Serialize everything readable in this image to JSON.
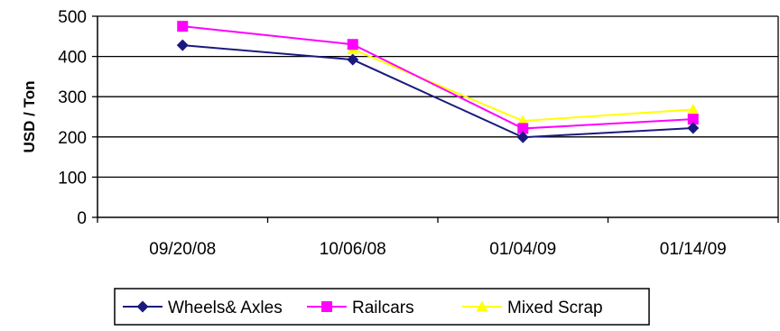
{
  "chart_data": {
    "type": "line",
    "title": "",
    "xlabel": "",
    "ylabel": "USD / Ton",
    "categories": [
      "09/20/08",
      "10/06/08",
      "01/04/09",
      "01/14/09"
    ],
    "ylim": [
      0,
      500
    ],
    "yticks": [
      0,
      100,
      200,
      300,
      400,
      500
    ],
    "grid": "horizontal",
    "legend": "bottom",
    "series": [
      {
        "name": "Wheels& Axles",
        "values": [
          428,
          392,
          199,
          222
        ],
        "color": "#1a1a7e",
        "marker": "diamond"
      },
      {
        "name": "Railcars",
        "values": [
          475,
          430,
          221,
          244
        ],
        "color": "#ff00ff",
        "marker": "square"
      },
      {
        "name": "Mixed Scrap",
        "values": [
          null,
          418,
          240,
          268
        ],
        "color": "#ffff00",
        "marker": "triangle"
      }
    ]
  }
}
